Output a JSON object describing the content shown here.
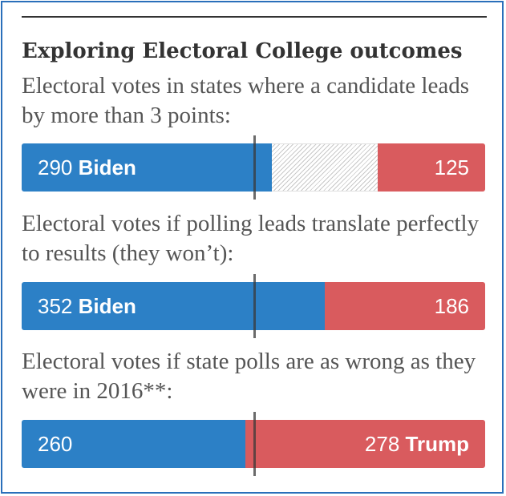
{
  "chart_data": {
    "type": "bar",
    "title": "Exploring Electoral College outcomes",
    "total_electoral_votes": 538,
    "threshold": 270,
    "colors": {
      "biden": "#2c80c6",
      "trump": "#d95b5e",
      "tossup": "#c9c9c9"
    },
    "scenarios": [
      {
        "id": "lead3",
        "subtitle": "Electoral votes in states where a candidate leads by more than 3 points:",
        "biden": 290,
        "trump": 125,
        "tossup": 123,
        "left_number": "290",
        "left_name": "Biden",
        "right_number": "125",
        "right_name": ""
      },
      {
        "id": "perfect",
        "subtitle": "Electoral votes if polling leads translate perfectly to results (they won’t):",
        "biden": 352,
        "trump": 186,
        "tossup": 0,
        "left_number": "352",
        "left_name": "Biden",
        "right_number": "186",
        "right_name": ""
      },
      {
        "id": "wrong2016",
        "subtitle": "Electoral votes if state polls are as wrong as they were in 2016**:",
        "biden": 260,
        "trump": 278,
        "tossup": 0,
        "left_number": "260",
        "left_name": "",
        "right_number": "278",
        "right_name": "Trump"
      }
    ]
  }
}
